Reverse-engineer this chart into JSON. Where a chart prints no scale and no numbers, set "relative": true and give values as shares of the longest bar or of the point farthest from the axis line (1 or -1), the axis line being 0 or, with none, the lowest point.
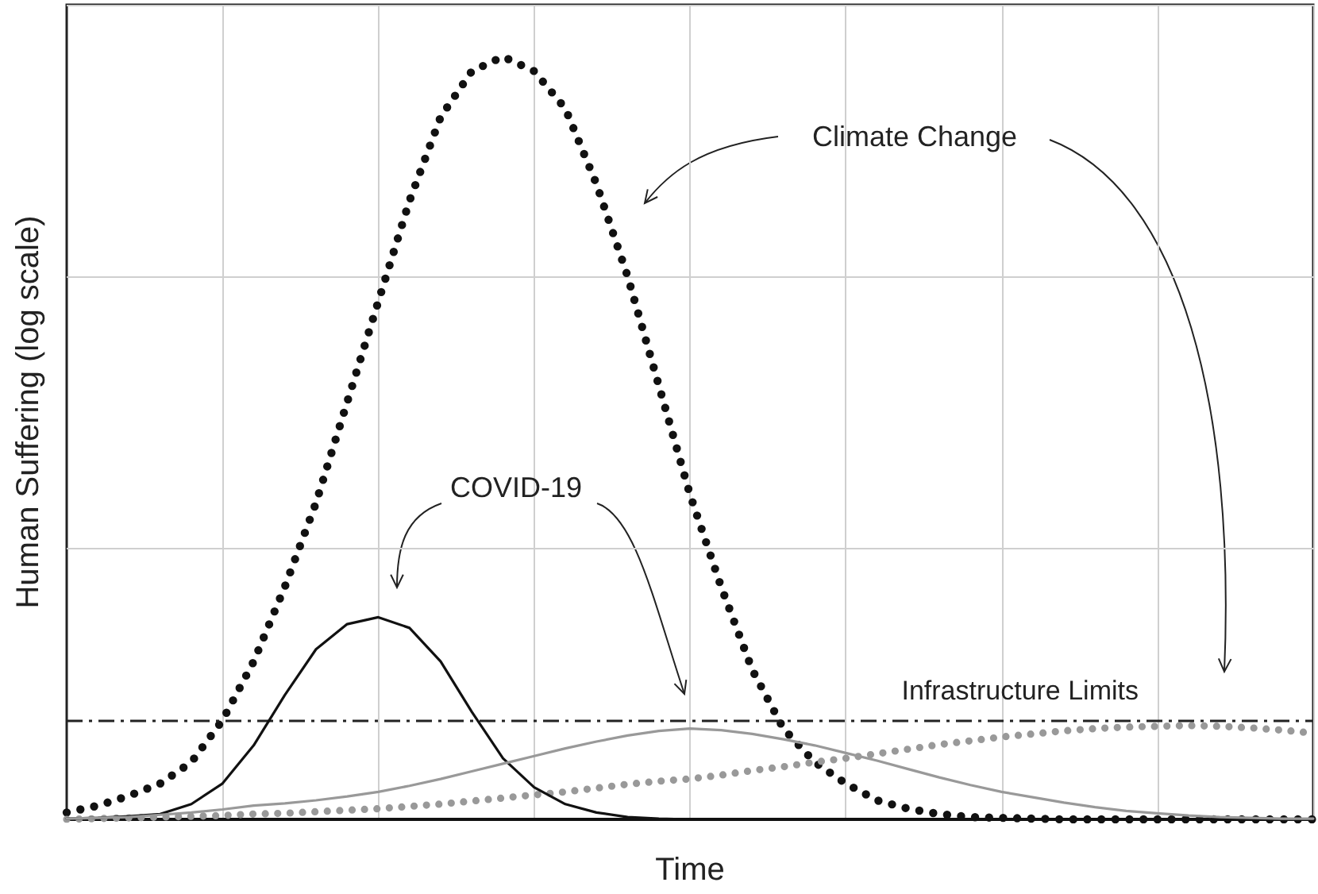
{
  "chart_data": {
    "type": "line",
    "relative": true,
    "xlabel": "Time",
    "ylabel": "Human Suffering (log scale)",
    "grid": true,
    "marker": "none",
    "categories": [
      null,
      null,
      null,
      null,
      null,
      null,
      null,
      null,
      null,
      null,
      null,
      null,
      null,
      null,
      null,
      null,
      null,
      null,
      null,
      null,
      null,
      null,
      null,
      null,
      null,
      null,
      null,
      null,
      null,
      null,
      null,
      null,
      null,
      null,
      null,
      null,
      null,
      null,
      null,
      null,
      null
    ],
    "series": [
      {
        "color": "#111111",
        "line_style": "dotted",
        "values": [
          0.009,
          0.018,
          0.031,
          0.047,
          0.075,
          0.13,
          0.207,
          0.305,
          0.415,
          0.547,
          0.679,
          0.811,
          0.921,
          0.981,
          1,
          0.981,
          0.932,
          0.833,
          0.712,
          0.569,
          0.426,
          0.305,
          0.196,
          0.119,
          0.075,
          0.047,
          0.025,
          0.014,
          0.007,
          0.003,
          0.002,
          0.001,
          0,
          0,
          0,
          0,
          0,
          0,
          0,
          0,
          0
        ]
      },
      {
        "color": "#999999",
        "line_style": "dotted",
        "values": [
          0,
          0.001,
          0.002,
          0.003,
          0.004,
          0.005,
          0.007,
          0.008,
          0.01,
          0.012,
          0.014,
          0.017,
          0.02,
          0.024,
          0.028,
          0.032,
          0.036,
          0.041,
          0.046,
          0.05,
          0.053,
          0.058,
          0.064,
          0.069,
          0.075,
          0.08,
          0.086,
          0.092,
          0.098,
          0.103,
          0.108,
          0.112,
          0.116,
          0.119,
          0.121,
          0.122,
          0.123,
          0.122,
          0.12,
          0.117,
          0.113
        ]
      },
      {
        "color": "#111111",
        "line_style": "solid",
        "values": [
          0.001,
          0.002,
          0.004,
          0.007,
          0.02,
          0.047,
          0.097,
          0.163,
          0.223,
          0.256,
          0.265,
          0.251,
          0.207,
          0.141,
          0.08,
          0.042,
          0.02,
          0.009,
          0.003,
          0.001,
          0,
          0,
          0,
          0,
          0,
          0,
          0,
          0,
          0,
          0,
          0,
          0,
          0,
          0,
          0,
          0,
          0,
          0,
          0,
          0,
          0
        ]
      },
      {
        "color": "#999999",
        "line_style": "solid",
        "values": [
          0.001,
          0.002,
          0.003,
          0.006,
          0.009,
          0.013,
          0.018,
          0.021,
          0.025,
          0.03,
          0.036,
          0.044,
          0.053,
          0.063,
          0.073,
          0.083,
          0.093,
          0.102,
          0.11,
          0.116,
          0.119,
          0.117,
          0.112,
          0.105,
          0.097,
          0.087,
          0.077,
          0.066,
          0.055,
          0.045,
          0.036,
          0.029,
          0.022,
          0.016,
          0.011,
          0.008,
          0.005,
          0.003,
          0.002,
          0.001,
          0.001
        ]
      }
    ],
    "ref_lines": [
      {
        "axis": "y",
        "value": 0.133,
        "label": "Infrastructure Limits",
        "color": "#222222",
        "line_style": "dashed"
      }
    ],
    "annotations": [
      "Climate Change",
      "COVID-19"
    ]
  }
}
